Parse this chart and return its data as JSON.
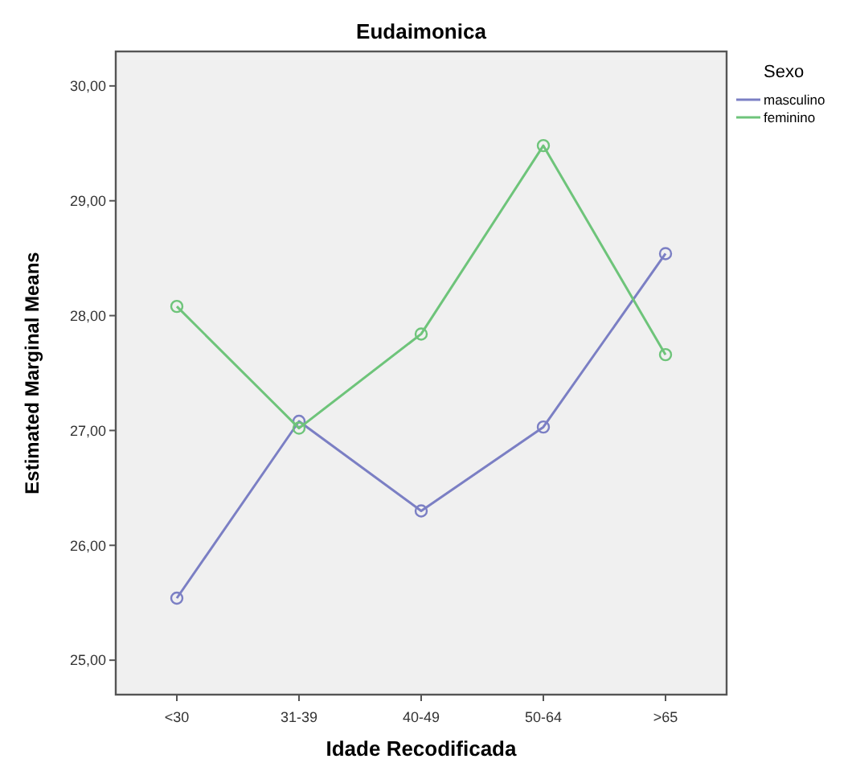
{
  "chart_data": {
    "type": "line",
    "title": "Eudaimonica",
    "xlabel": "Idade Recodificada",
    "ylabel": "Estimated Marginal Means",
    "legend_title": "Sexo",
    "legend": "right",
    "marker": "circle",
    "grid": false,
    "categories": [
      "<30",
      "31-39",
      "40-49",
      "50-64",
      ">65"
    ],
    "ylim": [
      24.7,
      30.3
    ],
    "yticks": [
      {
        "value": 25,
        "label": "25,00"
      },
      {
        "value": 26,
        "label": "26,00"
      },
      {
        "value": 27,
        "label": "27,00"
      },
      {
        "value": 28,
        "label": "28,00"
      },
      {
        "value": 29,
        "label": "29,00"
      },
      {
        "value": 30,
        "label": "30,00"
      }
    ],
    "series": [
      {
        "name": "masculino",
        "color": "#7b7fc4",
        "values": [
          25.54,
          27.08,
          26.3,
          27.03,
          28.54
        ]
      },
      {
        "name": "feminino",
        "color": "#6ec47a",
        "values": [
          28.08,
          27.02,
          27.84,
          29.48,
          27.66
        ]
      }
    ]
  }
}
